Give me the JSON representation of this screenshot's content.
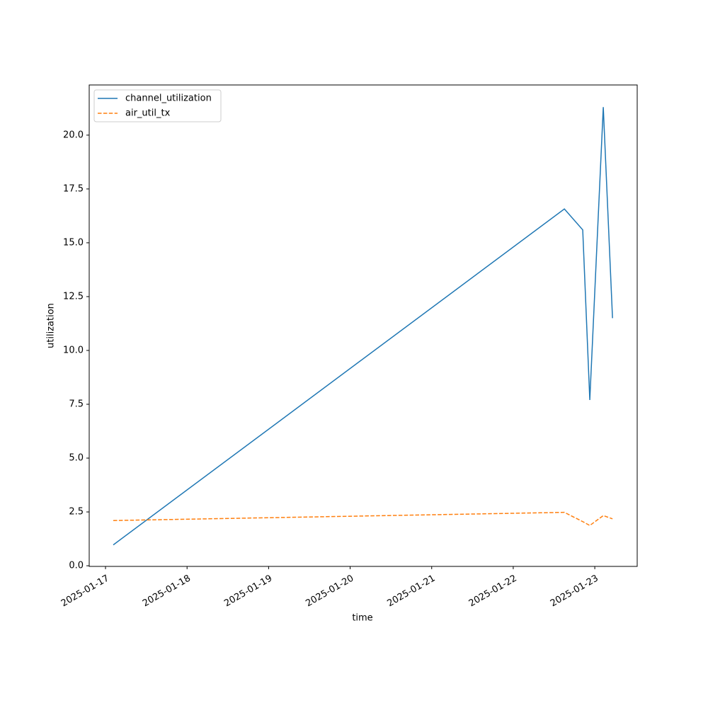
{
  "chart_data": {
    "type": "line",
    "x_label": "time",
    "y_label": "utilization",
    "x": [
      "2025-01-17T02:17",
      "2025-01-22T15:03",
      "2025-01-22T20:27",
      "2025-01-22T22:32",
      "2025-01-23T02:30",
      "2025-01-23T05:13"
    ],
    "series": [
      {
        "name": "channel_utilization",
        "color": "#1f77b4",
        "linestyle": "solid",
        "values": [
          0.97,
          16.57,
          15.6,
          7.7,
          21.3,
          11.5
        ]
      },
      {
        "name": "air_util_tx",
        "color": "#ff7f0e",
        "linestyle": "dashed",
        "values": [
          2.1,
          2.48,
          2.05,
          1.87,
          2.33,
          2.18
        ]
      }
    ],
    "xlim": [
      "2025-01-16T19:12",
      "2025-01-23T12:29"
    ],
    "xticks": [
      "2025-01-17",
      "2025-01-18",
      "2025-01-19",
      "2025-01-20",
      "2025-01-21",
      "2025-01-22",
      "2025-01-23"
    ],
    "ylim": [
      -0.03,
      22.33
    ],
    "yticks": [
      {
        "value": 0,
        "label": "0.0"
      },
      {
        "value": 2.5,
        "label": "2.5"
      },
      {
        "value": 5,
        "label": "5.0"
      },
      {
        "value": 7.5,
        "label": "7.5"
      },
      {
        "value": 10,
        "label": "10.0"
      },
      {
        "value": 12.5,
        "label": "12.5"
      },
      {
        "value": 15,
        "label": "15.0"
      },
      {
        "value": 17.5,
        "label": "17.5"
      },
      {
        "value": 20,
        "label": "20.0"
      }
    ],
    "legend": "upper left",
    "grid": false
  }
}
